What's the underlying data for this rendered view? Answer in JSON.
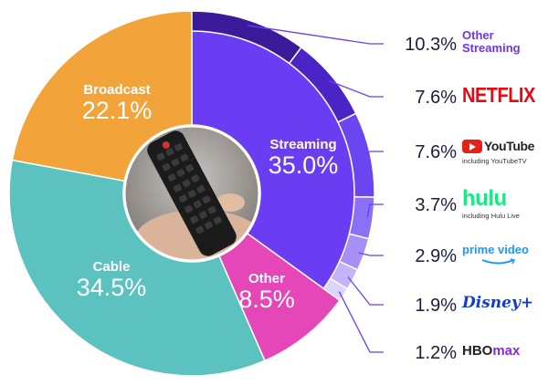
{
  "chart_data": {
    "type": "pie",
    "slices": [
      {
        "name": "Streaming",
        "label": "35.0%",
        "value": 35.0,
        "color": "#6b3df2"
      },
      {
        "name": "Other",
        "label": "8.5%",
        "value": 8.5,
        "color": "#e547b8"
      },
      {
        "name": "Cable",
        "label": "34.5%",
        "value": 34.5,
        "color": "#5bc2c0"
      },
      {
        "name": "Broadcast",
        "label": "22.1%",
        "value": 22.1,
        "color": "#f2a33a"
      }
    ],
    "streaming_breakdown": [
      {
        "name": "Other Streaming",
        "label": "10.3%",
        "value": 10.3,
        "color": "#3b1b9a"
      },
      {
        "name": "NETFLIX",
        "label": "7.6%",
        "value": 7.6,
        "color": "#4a24c4"
      },
      {
        "name": "YouTube",
        "sub": "including YouTubeTV",
        "label": "7.6%",
        "value": 7.6,
        "color": "#6a45f0"
      },
      {
        "name": "hulu",
        "sub": "including Hulu Live",
        "label": "3.7%",
        "value": 3.7,
        "color": "#8a70f4"
      },
      {
        "name": "prime video",
        "label": "2.9%",
        "value": 2.9,
        "color": "#a690f6"
      },
      {
        "name": "Disney+",
        "label": "1.9%",
        "value": 1.9,
        "color": "#c3b4f9"
      },
      {
        "name": "HBO",
        "name2": "max",
        "label": "1.2%",
        "value": 1.2,
        "color": "#ddd4fc"
      }
    ],
    "leader_color": "#6b3df2"
  }
}
